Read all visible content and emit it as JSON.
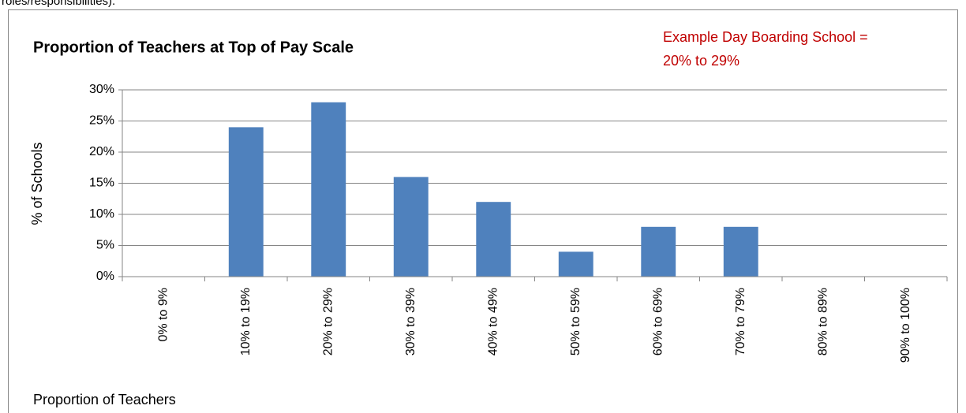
{
  "context_text": "roles/responsibilities).",
  "chart_data": {
    "type": "bar",
    "title": "Proportion of Teachers at Top of Pay Scale",
    "annotation": [
      "Example Day Boarding School =",
      "20% to 29%"
    ],
    "annotation_color": "#c00000",
    "x_label": "Proportion of Teachers",
    "y_label": "% of Schools",
    "categories": [
      "0% to 9%",
      "10% to 19%",
      "20% to 29%",
      "30% to 39%",
      "40% to 49%",
      "50% to 59%",
      "60% to 69%",
      "70% to 79%",
      "80% to 89%",
      "90% to 100%"
    ],
    "values": [
      0,
      24,
      28,
      16,
      12,
      4,
      8,
      8,
      0,
      0
    ],
    "color": "#4f81bd",
    "ylim": [
      0,
      30
    ],
    "yticks": [
      {
        "value": 0,
        "label": "0%"
      },
      {
        "value": 5,
        "label": "5%"
      },
      {
        "value": 10,
        "label": "10%"
      },
      {
        "value": 15,
        "label": "15%"
      },
      {
        "value": 20,
        "label": "20%"
      },
      {
        "value": 25,
        "label": "25%"
      },
      {
        "value": 30,
        "label": "30%"
      }
    ],
    "grid": true
  }
}
